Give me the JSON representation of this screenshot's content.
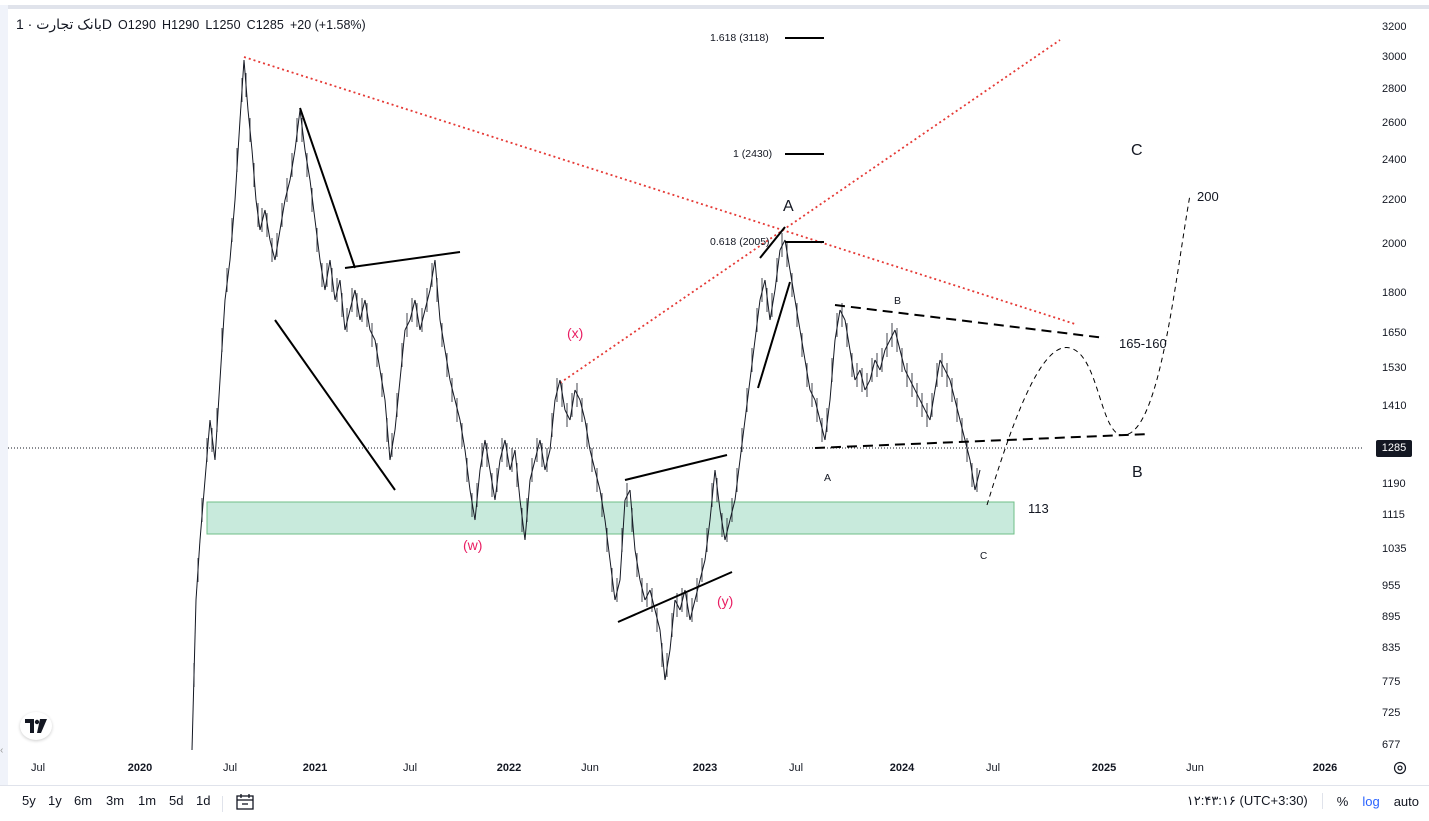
{
  "legend": {
    "symbol": "بانک تجارت · 1D",
    "open": "O1290",
    "high": "H1290",
    "low": "L1250",
    "close": "C1285",
    "change": "+20 (+1.58%)"
  },
  "price_axis": {
    "ticks": [
      "3200",
      "3000",
      "2800",
      "2600",
      "2400",
      "2200",
      "2000",
      "1800",
      "1650",
      "1530",
      "1410",
      "1190",
      "1115",
      "1035",
      "955",
      "895",
      "835",
      "775",
      "725",
      "677"
    ],
    "current_price": "1285"
  },
  "time_axis": {
    "ticks": [
      {
        "label": "Jul",
        "year": false
      },
      {
        "label": "2020",
        "year": true
      },
      {
        "label": "Jul",
        "year": false
      },
      {
        "label": "2021",
        "year": true
      },
      {
        "label": "Jul",
        "year": false
      },
      {
        "label": "2022",
        "year": true
      },
      {
        "label": "Jun",
        "year": false
      },
      {
        "label": "2023",
        "year": true
      },
      {
        "label": "Jul",
        "year": false
      },
      {
        "label": "2024",
        "year": true
      },
      {
        "label": "Jul",
        "year": false
      },
      {
        "label": "2025",
        "year": true
      },
      {
        "label": "Jun",
        "year": false
      },
      {
        "label": "2026",
        "year": true
      }
    ]
  },
  "annotations": {
    "fib_1618": "1.618 (3118)",
    "fib_1": "1 (2430)",
    "fib_0618": "0.618 (2005)",
    "wave_A_top": "A",
    "wave_C": "C",
    "wave_B": "B",
    "target_200": "200",
    "target_165": "165-160",
    "zone_113": "113",
    "wave_x": "(x)",
    "wave_w": "(w)",
    "wave_y": "(y)",
    "small_a": "A",
    "small_b": "B",
    "small_c": "C"
  },
  "bottom_bar": {
    "ranges": [
      "5y",
      "1y",
      "6m",
      "3m",
      "1m",
      "5d",
      "1d"
    ],
    "clock": "۱۲:۴۳:۱۶ (UTC+3:30)",
    "percent": "%",
    "log": "log",
    "auto": "auto"
  },
  "colors": {
    "zone_fill": "#c8eadc",
    "zone_border": "#6fbf87",
    "trend_red": "#e53935",
    "pink": "#e91e63"
  },
  "icons": [
    "tradingview-logo-icon",
    "settings-gear-icon",
    "compare-calendar-icon"
  ]
}
